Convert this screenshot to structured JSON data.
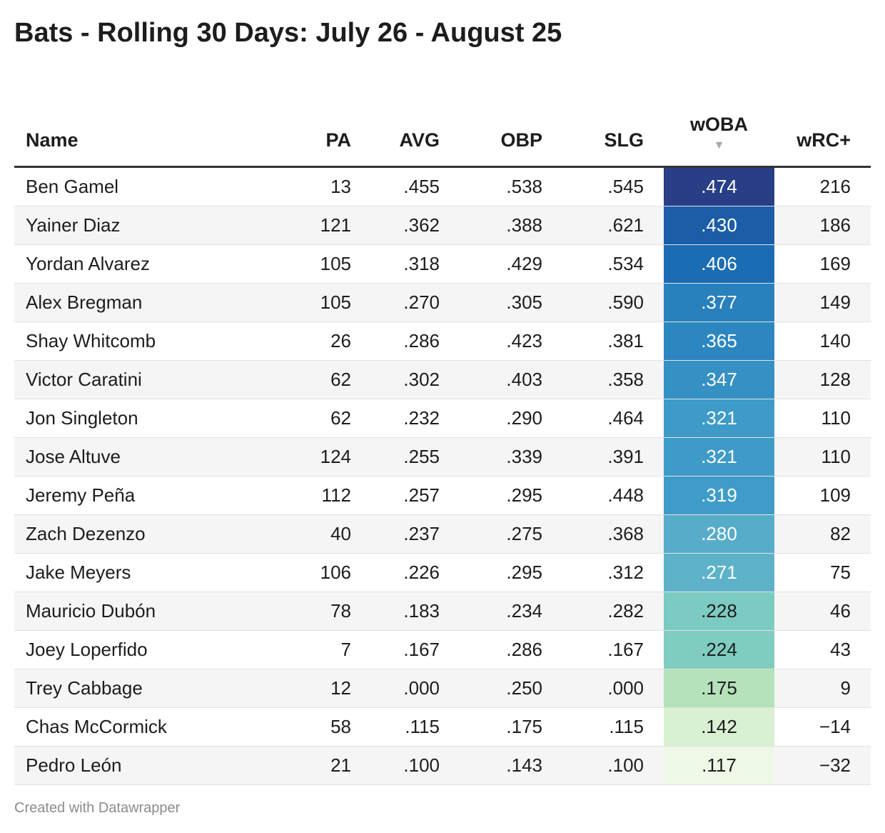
{
  "title": "Bats - Rolling 30 Days: July 26 - August 25",
  "footer": "Created with Datawrapper",
  "chart_data": {
    "type": "table",
    "title": "Bats - Rolling 30 Days: July 26 - August 25",
    "columns": [
      "Name",
      "PA",
      "AVG",
      "OBP",
      "SLG",
      "wOBA",
      "wRC+"
    ],
    "sorted_by": "wOBA",
    "sort_icon": "sort-descending-icon",
    "color_scale_column": "wOBA",
    "rows": [
      {
        "Name": "Ben Gamel",
        "PA": "13",
        "AVG": ".455",
        "OBP": ".538",
        "SLG": ".545",
        "wOBA": ".474",
        "wRC+": "216",
        "woba_color": "#283e86",
        "woba_text_color": "#ffffff"
      },
      {
        "Name": "Yainer Diaz",
        "PA": "121",
        "AVG": ".362",
        "OBP": ".388",
        "SLG": ".621",
        "wOBA": ".430",
        "wRC+": "186",
        "woba_color": "#1c5da7",
        "woba_text_color": "#ffffff"
      },
      {
        "Name": "Yordan Alvarez",
        "PA": "105",
        "AVG": ".318",
        "OBP": ".429",
        "SLG": ".534",
        "wOBA": ".406",
        "wRC+": "169",
        "woba_color": "#1b6db3",
        "woba_text_color": "#ffffff"
      },
      {
        "Name": "Alex Bregman",
        "PA": "105",
        "AVG": ".270",
        "OBP": ".305",
        "SLG": ".590",
        "wOBA": ".377",
        "wRC+": "149",
        "woba_color": "#2880bd",
        "woba_text_color": "#ffffff"
      },
      {
        "Name": "Shay Whitcomb",
        "PA": "26",
        "AVG": ".286",
        "OBP": ".423",
        "SLG": ".381",
        "wOBA": ".365",
        "wRC+": "140",
        "woba_color": "#2c87c1",
        "woba_text_color": "#ffffff"
      },
      {
        "Name": "Victor Caratini",
        "PA": "62",
        "AVG": ".302",
        "OBP": ".403",
        "SLG": ".358",
        "wOBA": ".347",
        "wRC+": "128",
        "woba_color": "#3590c4",
        "woba_text_color": "#ffffff"
      },
      {
        "Name": "Jon Singleton",
        "PA": "62",
        "AVG": ".232",
        "OBP": ".290",
        "SLG": ".464",
        "wOBA": ".321",
        "wRC+": "110",
        "woba_color": "#3e9bc8",
        "woba_text_color": "#ffffff"
      },
      {
        "Name": "Jose Altuve",
        "PA": "124",
        "AVG": ".255",
        "OBP": ".339",
        "SLG": ".391",
        "wOBA": ".321",
        "wRC+": "110",
        "woba_color": "#3e9bc8",
        "woba_text_color": "#ffffff"
      },
      {
        "Name": "Jeremy Peña",
        "PA": "112",
        "AVG": ".257",
        "OBP": ".295",
        "SLG": ".448",
        "wOBA": ".319",
        "wRC+": "109",
        "woba_color": "#3f9cc9",
        "woba_text_color": "#ffffff"
      },
      {
        "Name": "Zach Dezenzo",
        "PA": "40",
        "AVG": ".237",
        "OBP": ".275",
        "SLG": ".368",
        "wOBA": ".280",
        "wRC+": "82",
        "woba_color": "#57adc9",
        "woba_text_color": "#ffffff"
      },
      {
        "Name": "Jake Meyers",
        "PA": "106",
        "AVG": ".226",
        "OBP": ".295",
        "SLG": ".312",
        "wOBA": ".271",
        "wRC+": "75",
        "woba_color": "#5db2c9",
        "woba_text_color": "#ffffff"
      },
      {
        "Name": "Mauricio Dubón",
        "PA": "78",
        "AVG": ".183",
        "OBP": ".234",
        "SLG": ".282",
        "wOBA": ".228",
        "wRC+": "46",
        "woba_color": "#7bcbc2",
        "woba_text_color": "#1d1d1d"
      },
      {
        "Name": "Joey Loperfido",
        "PA": "7",
        "AVG": ".167",
        "OBP": ".286",
        "SLG": ".167",
        "wOBA": ".224",
        "wRC+": "43",
        "woba_color": "#7fcdc0",
        "woba_text_color": "#1d1d1d"
      },
      {
        "Name": "Trey Cabbage",
        "PA": "12",
        "AVG": ".000",
        "OBP": ".250",
        "SLG": ".000",
        "wOBA": ".175",
        "wRC+": "9",
        "woba_color": "#b5e2ba",
        "woba_text_color": "#1d1d1d"
      },
      {
        "Name": "Chas McCormick",
        "PA": "58",
        "AVG": ".115",
        "OBP": ".175",
        "SLG": ".115",
        "wOBA": ".142",
        "wRC+": "−14",
        "woba_color": "#d9f0d3",
        "woba_text_color": "#1d1d1d"
      },
      {
        "Name": "Pedro León",
        "PA": "21",
        "AVG": ".100",
        "OBP": ".143",
        "SLG": ".100",
        "wOBA": ".117",
        "wRC+": "−32",
        "woba_color": "#eef8e6",
        "woba_text_color": "#1d1d1d"
      }
    ]
  }
}
